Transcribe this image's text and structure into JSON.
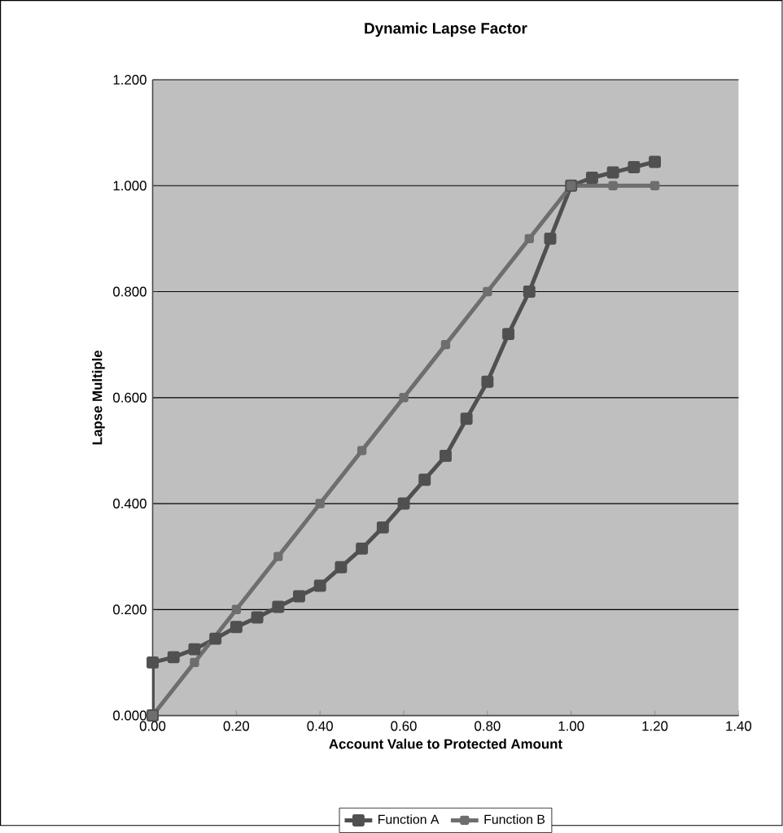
{
  "chart_data": {
    "type": "line",
    "title": "Dynamic Lapse Factor",
    "xlabel": "Account Value to Protected Amount",
    "ylabel": "Lapse Multiple",
    "xlim": [
      0,
      1.4
    ],
    "ylim": [
      0,
      1.2
    ],
    "xticks": [
      {
        "value": 0,
        "label": "0.00"
      },
      {
        "value": 0.2,
        "label": "0.20"
      },
      {
        "value": 0.4,
        "label": "0.40"
      },
      {
        "value": 0.6,
        "label": "0.60"
      },
      {
        "value": 0.8,
        "label": "0.80"
      },
      {
        "value": 1.0,
        "label": "1.00"
      },
      {
        "value": 1.2,
        "label": "1.20"
      },
      {
        "value": 1.4,
        "label": "1.40"
      }
    ],
    "yticks": [
      {
        "value": 0,
        "label": "0.000"
      },
      {
        "value": 0.2,
        "label": "0.200"
      },
      {
        "value": 0.4,
        "label": "0.400"
      },
      {
        "value": 0.6,
        "label": "0.600"
      },
      {
        "value": 0.8,
        "label": "0.800"
      },
      {
        "value": 1.0,
        "label": "1.000"
      },
      {
        "value": 1.2,
        "label": "1.200"
      }
    ],
    "grid": "y",
    "legend": "bottom",
    "marker": "square",
    "line_style": "solid",
    "series": [
      {
        "name": "Function A",
        "color": "#505050",
        "x": [
          0,
          0,
          0.05,
          0.1,
          0.15,
          0.2,
          0.25,
          0.3,
          0.35,
          0.4,
          0.45,
          0.5,
          0.55,
          0.6,
          0.65,
          0.7,
          0.75,
          0.8,
          0.85,
          0.9,
          0.95,
          1.0,
          1.05,
          1.1,
          1.15,
          1.2
        ],
        "values": [
          0,
          0.1,
          0.11,
          0.125,
          0.145,
          0.167,
          0.185,
          0.205,
          0.225,
          0.245,
          0.28,
          0.315,
          0.355,
          0.4,
          0.445,
          0.49,
          0.56,
          0.63,
          0.72,
          0.8,
          0.9,
          1.0,
          1.015,
          1.025,
          1.035,
          1.045
        ]
      },
      {
        "name": "Function B",
        "color": "#6e6e6e",
        "x": [
          0,
          0.1,
          0.2,
          0.3,
          0.4,
          0.5,
          0.6,
          0.7,
          0.8,
          0.9,
          1.0,
          1.1,
          1.2
        ],
        "values": [
          0,
          0.1,
          0.2,
          0.3,
          0.4,
          0.5,
          0.6,
          0.7,
          0.8,
          0.9,
          1.0,
          1.0,
          1.0
        ]
      }
    ]
  }
}
